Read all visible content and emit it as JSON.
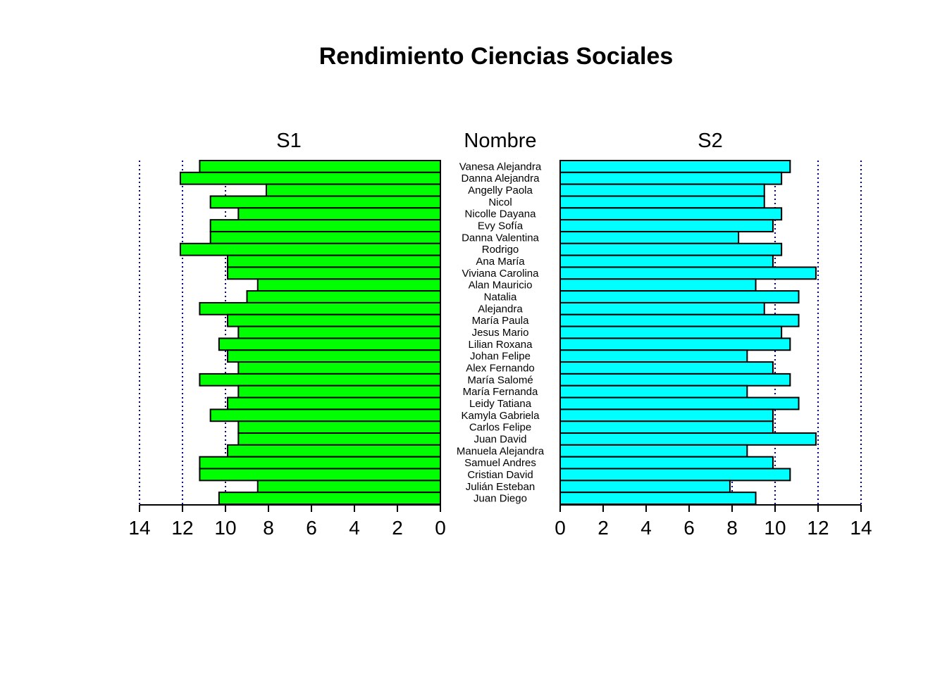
{
  "chart_data": {
    "type": "bar",
    "orientation": "horizontal",
    "layout": "back-to-back",
    "title": "Rendimiento Ciencias Sociales",
    "center_label": "Nombre",
    "categories": [
      "Vanesa Alejandra",
      "Danna Alejandra",
      "Angelly Paola",
      "Nicol",
      "Nicolle Dayana",
      "Evy Sofía",
      "Danna Valentina",
      "Rodrigo",
      "Ana María",
      "Viviana Carolina",
      "Alan Mauricio",
      "Natalia",
      "Alejandra",
      "María Paula",
      "Jesus Mario",
      "Lilian Roxana",
      "Johan Felipe",
      "Alex Fernando",
      "María Salomé",
      "María Fernanda",
      "Leidy Tatiana",
      "Kamyla Gabriela",
      "Carlos Felipe",
      "Juan David",
      "Manuela Alejandra",
      "Samuel Andres",
      "Cristian David",
      "Julián Esteban",
      "Juan Diego"
    ],
    "series": [
      {
        "name": "S1",
        "color": "#00ff00",
        "side": "left",
        "values": [
          11.2,
          12.1,
          8.1,
          10.7,
          9.4,
          10.7,
          10.7,
          12.1,
          9.9,
          9.9,
          8.5,
          9.0,
          11.2,
          9.9,
          9.4,
          10.3,
          9.9,
          9.4,
          11.2,
          9.4,
          9.9,
          10.7,
          9.4,
          9.4,
          9.9,
          11.2,
          11.2,
          8.5,
          10.3
        ]
      },
      {
        "name": "S2",
        "color": "#00ffff",
        "side": "right",
        "values": [
          10.7,
          10.3,
          9.5,
          9.5,
          10.3,
          9.9,
          8.3,
          10.3,
          9.9,
          11.9,
          9.1,
          11.1,
          9.5,
          11.1,
          10.3,
          10.7,
          8.7,
          9.9,
          10.7,
          8.7,
          11.1,
          9.9,
          9.9,
          11.9,
          8.7,
          9.9,
          10.7,
          7.9,
          9.1
        ]
      }
    ],
    "xlim": [
      0,
      14
    ],
    "xticks": [
      0,
      2,
      4,
      6,
      8,
      10,
      12,
      14
    ],
    "grid_x": [
      8,
      10,
      12,
      14
    ],
    "grid_style": "dotted",
    "grid_color": "#00008b",
    "bar_outline_color": "#000000"
  }
}
